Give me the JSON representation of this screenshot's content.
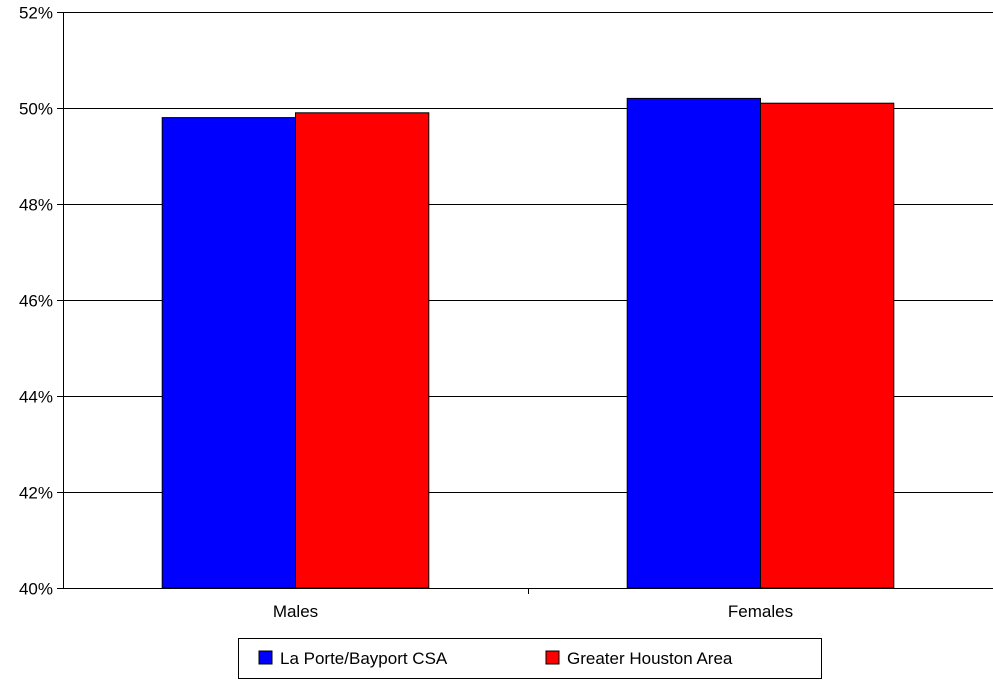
{
  "chart_data": {
    "type": "bar",
    "title": "",
    "xlabel": "",
    "ylabel": "",
    "categories": [
      "Males",
      "Females"
    ],
    "series": [
      {
        "name": "La Porte/Bayport CSA",
        "values": [
          49.8,
          50.2
        ],
        "color": "#0000ff"
      },
      {
        "name": "Greater Houston Area",
        "values": [
          49.9,
          50.1
        ],
        "color": "#ff0000"
      }
    ],
    "ylim": [
      40,
      52
    ],
    "yticks": [
      40,
      42,
      44,
      46,
      48,
      50,
      52
    ],
    "ytick_suffix": "%",
    "grid": true,
    "legend_position": "bottom"
  }
}
